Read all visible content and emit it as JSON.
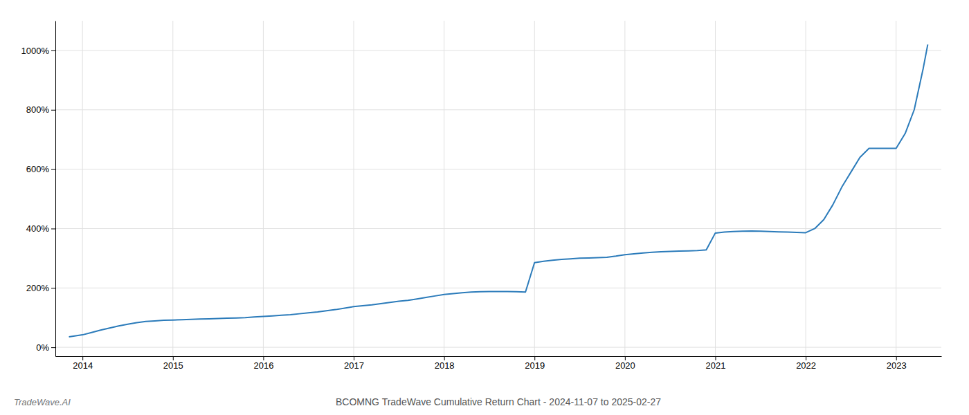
{
  "chart_data": {
    "type": "line",
    "title": "BCOMNG TradeWave Cumulative Return Chart - 2024-11-07 to 2025-02-27",
    "annotations": [
      "TradeWave.AI"
    ],
    "color": "#2b7bba",
    "grid": true,
    "x": [
      2013.85,
      2014.0,
      2014.1,
      2014.2,
      2014.3,
      2014.4,
      2014.5,
      2014.6,
      2014.7,
      2014.8,
      2014.9,
      2015.0,
      2015.1,
      2015.2,
      2015.3,
      2015.4,
      2015.5,
      2015.6,
      2015.7,
      2015.8,
      2015.9,
      2016.0,
      2016.1,
      2016.2,
      2016.3,
      2016.4,
      2016.5,
      2016.6,
      2016.7,
      2016.8,
      2016.9,
      2017.0,
      2017.1,
      2017.2,
      2017.3,
      2017.4,
      2017.5,
      2017.6,
      2017.7,
      2017.8,
      2017.9,
      2018.0,
      2018.1,
      2018.2,
      2018.3,
      2018.4,
      2018.5,
      2018.6,
      2018.7,
      2018.8,
      2018.9,
      2019.0,
      2019.1,
      2019.2,
      2019.3,
      2019.4,
      2019.5,
      2019.6,
      2019.7,
      2019.8,
      2019.9,
      2020.0,
      2020.1,
      2020.2,
      2020.3,
      2020.4,
      2020.5,
      2020.6,
      2020.7,
      2020.8,
      2020.9,
      2021.0,
      2021.1,
      2021.2,
      2021.3,
      2021.4,
      2021.5,
      2021.6,
      2021.7,
      2021.8,
      2021.9,
      2022.0,
      2022.1,
      2022.2,
      2022.3,
      2022.4,
      2022.5,
      2022.6,
      2022.7,
      2022.8,
      2022.9,
      2023.0,
      2023.1,
      2023.2,
      2023.3,
      2023.35
    ],
    "values": [
      35,
      42,
      50,
      58,
      65,
      72,
      78,
      83,
      87,
      89,
      91,
      92,
      93,
      94,
      95,
      96,
      97,
      98,
      99,
      100,
      102,
      104,
      106,
      108,
      110,
      113,
      116,
      119,
      123,
      127,
      132,
      137,
      140,
      143,
      147,
      151,
      155,
      158,
      163,
      168,
      173,
      178,
      181,
      184,
      186,
      187,
      188,
      188,
      188,
      187,
      186,
      285,
      290,
      293,
      296,
      298,
      300,
      301,
      302,
      303,
      307,
      312,
      315,
      318,
      320,
      322,
      323,
      324,
      325,
      326,
      328,
      385,
      388,
      390,
      391,
      392,
      391,
      390,
      389,
      388,
      387,
      386,
      400,
      430,
      480,
      540,
      590,
      640,
      670,
      670,
      670,
      670,
      720,
      800,
      940,
      1020
    ],
    "xlim": [
      2013.7,
      2023.5
    ],
    "ylim": [
      -30,
      1100
    ],
    "xticks": [
      2014,
      2015,
      2016,
      2017,
      2018,
      2019,
      2020,
      2021,
      2022,
      2023
    ],
    "yticks": [
      {
        "value": 0,
        "label": "0%"
      },
      {
        "value": 200,
        "label": "200%"
      },
      {
        "value": 400,
        "label": "400%"
      },
      {
        "value": 600,
        "label": "600%"
      },
      {
        "value": 800,
        "label": "800%"
      },
      {
        "value": 1000,
        "label": "1000%"
      }
    ]
  }
}
